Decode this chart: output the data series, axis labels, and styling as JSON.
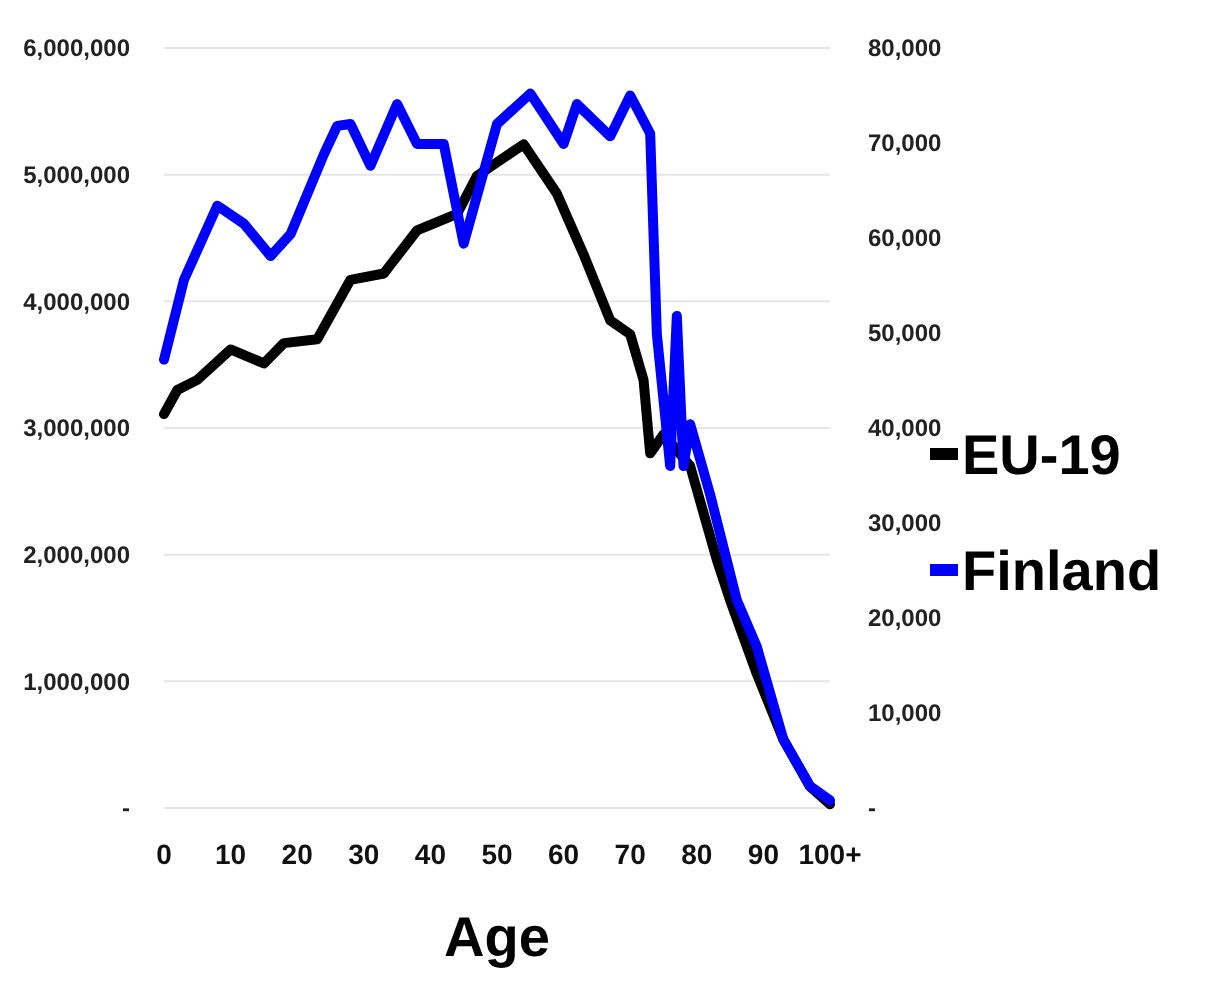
{
  "chart_data": {
    "type": "line",
    "xlabel": "Age",
    "xlim": [
      0,
      100
    ],
    "xticks": [
      0,
      10,
      20,
      30,
      40,
      50,
      60,
      70,
      80,
      90,
      {
        "value": 100,
        "label": "100+"
      }
    ],
    "ylim": [
      0,
      6000000
    ],
    "yticks": [
      {
        "value": 0,
        "label": "-"
      },
      {
        "value": 1000000,
        "label": "1,000,000"
      },
      {
        "value": 2000000,
        "label": "2,000,000"
      },
      {
        "value": 3000000,
        "label": "3,000,000"
      },
      {
        "value": 4000000,
        "label": "4,000,000"
      },
      {
        "value": 5000000,
        "label": "5,000,000"
      },
      {
        "value": 6000000,
        "label": "6,000,000"
      }
    ],
    "y2lim": [
      0,
      80000
    ],
    "y2ticks": [
      {
        "value": 0,
        "label": "-"
      },
      {
        "value": 10000,
        "label": "10,000"
      },
      {
        "value": 20000,
        "label": "20,000"
      },
      {
        "value": 30000,
        "label": "30,000"
      },
      {
        "value": 40000,
        "label": "40,000"
      },
      {
        "value": 50000,
        "label": "50,000"
      },
      {
        "value": 60000,
        "label": "60,000"
      },
      {
        "value": 70000,
        "label": "70,000"
      },
      {
        "value": 80000,
        "label": "80,000"
      }
    ],
    "grid": "y",
    "legend": "right",
    "line_style": "solid",
    "series": [
      {
        "name": "EU-19",
        "color": "#000000",
        "x": [
          0,
          2,
          5,
          10,
          15,
          18,
          23,
          28,
          33,
          38,
          44,
          47,
          54,
          59,
          63,
          67,
          70,
          72,
          73,
          75,
          79,
          83,
          85,
          89,
          93,
          97,
          100
        ],
        "values": [
          3110000,
          3300000,
          3380000,
          3620000,
          3510000,
          3670000,
          3700000,
          4170000,
          4220000,
          4560000,
          4690000,
          4990000,
          5240000,
          4850000,
          4370000,
          3850000,
          3740000,
          3380000,
          2800000,
          2950000,
          2700000,
          1960000,
          1640000,
          1060000,
          540000,
          170000,
          30000
        ]
      },
      {
        "name": "Finland",
        "color": "#0000ff",
        "axis": "y2",
        "x": [
          0,
          3,
          8,
          12,
          16,
          19,
          24,
          26,
          28,
          31,
          35,
          38,
          42,
          45,
          50,
          55,
          60,
          62,
          67,
          70,
          73,
          74,
          76,
          77,
          78,
          79,
          82,
          86,
          89,
          93,
          97,
          100
        ],
        "values": [
          47200,
          55600,
          63400,
          61500,
          58100,
          60400,
          68800,
          71800,
          72000,
          67600,
          74100,
          69900,
          69900,
          59400,
          72000,
          75200,
          69900,
          74100,
          70700,
          75000,
          71000,
          49900,
          36000,
          51800,
          36000,
          40400,
          33000,
          21900,
          17000,
          7200,
          2300,
          800
        ]
      }
    ]
  }
}
